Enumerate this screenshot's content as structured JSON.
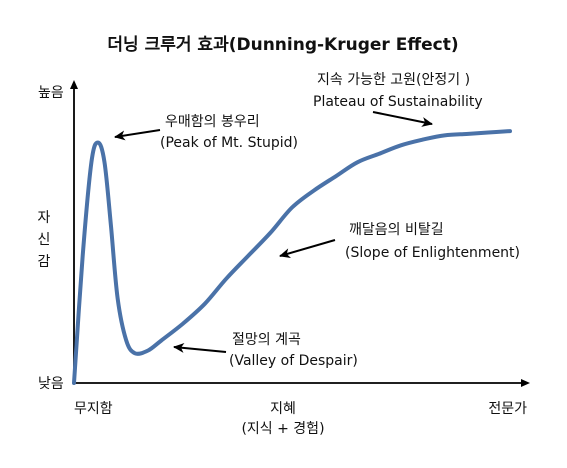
{
  "chart_data": {
    "type": "line",
    "title": "더닝 크루거 효과(Dunning-Kruger Effect)",
    "xlabel": "지혜",
    "xlabel_sub": "(지식 + 경험)",
    "ylabel": [
      "자",
      "신",
      "감"
    ],
    "y_ticks": {
      "high": "높음",
      "low": "낮음"
    },
    "x_ticks": {
      "start": "무지함",
      "end": "전문가"
    },
    "xlim": [
      0,
      1
    ],
    "ylim": [
      0,
      1
    ],
    "grid": false,
    "legend": "none",
    "series_color": "#4a72a8",
    "axis_color": "#000000",
    "curve": {
      "x": [
        0.0,
        0.02,
        0.04,
        0.055,
        0.07,
        0.085,
        0.1,
        0.12,
        0.14,
        0.17,
        0.2,
        0.25,
        0.3,
        0.35,
        0.4,
        0.45,
        0.5,
        0.55,
        0.6,
        0.65,
        0.7,
        0.75,
        0.8,
        0.85,
        0.9,
        0.95,
        1.0
      ],
      "y": [
        0.0,
        0.45,
        0.78,
        0.85,
        0.78,
        0.55,
        0.3,
        0.15,
        0.105,
        0.115,
        0.15,
        0.21,
        0.28,
        0.37,
        0.45,
        0.53,
        0.62,
        0.68,
        0.73,
        0.78,
        0.81,
        0.84,
        0.86,
        0.875,
        0.88,
        0.885,
        0.89
      ]
    },
    "annotations": [
      {
        "name": "peak",
        "ko": "우매함의 봉우리",
        "en": "(Peak of Mt. Stupid)",
        "x": 0.055,
        "y": 0.85
      },
      {
        "name": "valley",
        "ko": "절망의 계곡",
        "en": "(Valley of Despair)",
        "x": 0.22,
        "y": 0.1
      },
      {
        "name": "slope",
        "ko": "깨달음의 비탈길",
        "en": "(Slope of Enlightenment)",
        "x": 0.48,
        "y": 0.4
      },
      {
        "name": "plateau",
        "ko": "지속 가능한 고원(안정기 )",
        "en": "Plateau of Sustainability",
        "x": 0.8,
        "y": 0.87
      }
    ]
  }
}
